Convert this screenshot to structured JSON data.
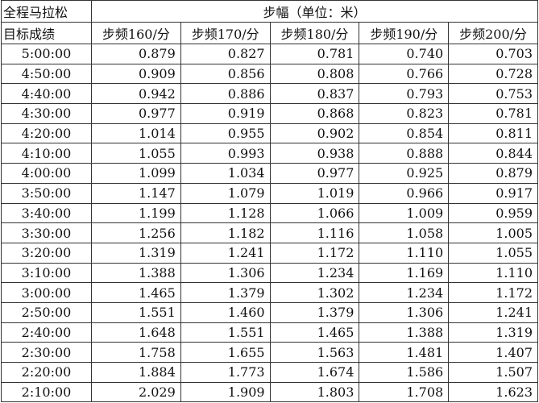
{
  "table": {
    "corner_top": "全程马拉松",
    "group_header": "步幅（单位：米）",
    "corner_bottom": "目标成绩",
    "columns": [
      "步频160/分",
      "步频170/分",
      "步频180/分",
      "步频190/分",
      "步频200/分"
    ],
    "rows": [
      [
        "5:00:00",
        "0.879",
        "0.827",
        "0.781",
        "0.740",
        "0.703"
      ],
      [
        "4:50:00",
        "0.909",
        "0.856",
        "0.808",
        "0.766",
        "0.728"
      ],
      [
        "4:40:00",
        "0.942",
        "0.886",
        "0.837",
        "0.793",
        "0.753"
      ],
      [
        "4:30:00",
        "0.977",
        "0.919",
        "0.868",
        "0.823",
        "0.781"
      ],
      [
        "4:20:00",
        "1.014",
        "0.955",
        "0.902",
        "0.854",
        "0.811"
      ],
      [
        "4:10:00",
        "1.055",
        "0.993",
        "0.938",
        "0.888",
        "0.844"
      ],
      [
        "4:00:00",
        "1.099",
        "1.034",
        "0.977",
        "0.925",
        "0.879"
      ],
      [
        "3:50:00",
        "1.147",
        "1.079",
        "1.019",
        "0.966",
        "0.917"
      ],
      [
        "3:40:00",
        "1.199",
        "1.128",
        "1.066",
        "1.009",
        "0.959"
      ],
      [
        "3:30:00",
        "1.256",
        "1.182",
        "1.116",
        "1.058",
        "1.005"
      ],
      [
        "3:20:00",
        "1.319",
        "1.241",
        "1.172",
        "1.110",
        "1.055"
      ],
      [
        "3:10:00",
        "1.388",
        "1.306",
        "1.234",
        "1.169",
        "1.110"
      ],
      [
        "3:00:00",
        "1.465",
        "1.379",
        "1.302",
        "1.234",
        "1.172"
      ],
      [
        "2:50:00",
        "1.551",
        "1.460",
        "1.379",
        "1.306",
        "1.241"
      ],
      [
        "2:40:00",
        "1.648",
        "1.551",
        "1.465",
        "1.388",
        "1.319"
      ],
      [
        "2:30:00",
        "1.758",
        "1.655",
        "1.563",
        "1.481",
        "1.407"
      ],
      [
        "2:20:00",
        "1.884",
        "1.773",
        "1.674",
        "1.586",
        "1.507"
      ],
      [
        "2:10:00",
        "2.029",
        "1.909",
        "1.803",
        "1.708",
        "1.623"
      ]
    ]
  }
}
